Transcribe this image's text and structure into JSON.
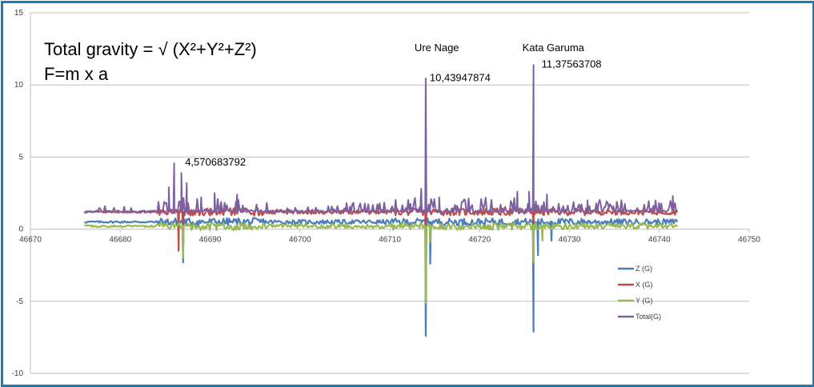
{
  "chart_data": {
    "type": "line",
    "title": "",
    "xlabel": "",
    "ylabel": "",
    "xlim": [
      46670,
      46750
    ],
    "ylim": [
      -10,
      15
    ],
    "x_ticks": [
      "46670",
      "46680",
      "46690",
      "46700",
      "46710",
      "46720",
      "46730",
      "46740",
      "46750"
    ],
    "y_ticks": [
      "15",
      "10",
      "5",
      "0",
      "-5",
      "-10"
    ],
    "grid": "horizontal",
    "legend_position": "right",
    "text_lines": [
      "Total gravity = √  (X²+Y²+Z²)",
      "F=m x a"
    ],
    "annotations": [
      {
        "text": "Ure Nage",
        "x": 46714,
        "y": 12.5
      },
      {
        "text": "Kata Garuma",
        "x": 46726,
        "y": 12.5
      },
      {
        "text": "4,570683792",
        "x": 46686.5,
        "y": 4.57
      },
      {
        "text": "10,43947874",
        "x": 46714,
        "y": 10.44
      },
      {
        "text": "11,37563708",
        "x": 46726,
        "y": 11.38
      }
    ],
    "x_start": 46676,
    "x_end": 46742,
    "series": [
      {
        "name": "Z (G)",
        "color": "#4a7ebb",
        "baseline": 0.5,
        "peaks": [
          [
            46687,
            -2.3
          ],
          [
            46714,
            -7.4
          ],
          [
            46714.5,
            -2.4
          ],
          [
            46726,
            -7.1
          ],
          [
            46726.5,
            -1.8
          ],
          [
            46728,
            -0.8
          ]
        ]
      },
      {
        "name": "X (G)",
        "color": "#be4b48",
        "baseline": 1.2,
        "peaks": [
          [
            46687,
            -1.9
          ],
          [
            46686.5,
            -1.5
          ],
          [
            46714,
            -0.6
          ],
          [
            46726,
            -0.6
          ]
        ]
      },
      {
        "name": "Y (G)",
        "color": "#98b954",
        "baseline": 0.2,
        "peaks": [
          [
            46687,
            -2.0
          ],
          [
            46714,
            -5.1
          ],
          [
            46714.5,
            -0.9
          ],
          [
            46726,
            -2.3
          ],
          [
            46727,
            -0.8
          ]
        ]
      },
      {
        "name": "Total(G)",
        "color": "#7d60a0",
        "baseline": 1.3,
        "peaks": [
          [
            46686,
            4.57
          ],
          [
            46686.8,
            3.9
          ],
          [
            46687.4,
            3.2
          ],
          [
            46685.4,
            2.9
          ],
          [
            46689,
            2.2
          ],
          [
            46690.5,
            2.5
          ],
          [
            46693,
            2.4
          ],
          [
            46714,
            10.44
          ],
          [
            46713.5,
            2.8
          ],
          [
            46715.5,
            2.2
          ],
          [
            46726,
            11.38
          ],
          [
            46725.5,
            2.6
          ],
          [
            46724.2,
            2.6
          ],
          [
            46727.5,
            2.4
          ],
          [
            46741.5,
            2.3
          ],
          [
            46732,
            2.0
          ]
        ]
      }
    ]
  }
}
